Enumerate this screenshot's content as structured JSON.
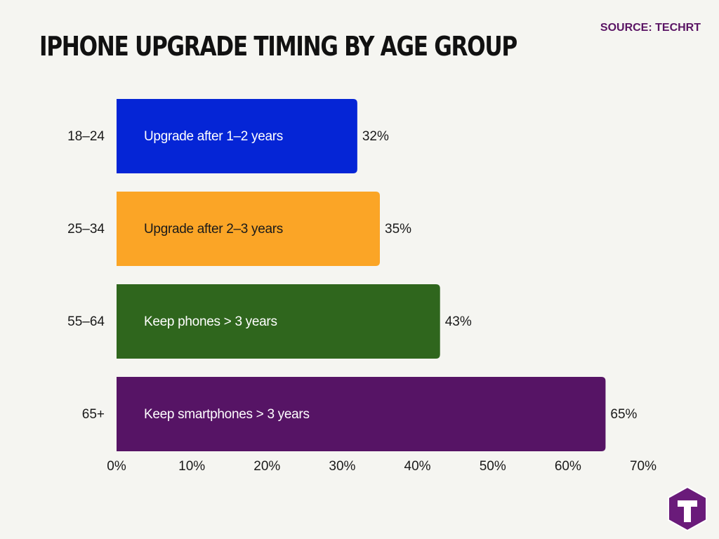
{
  "title": "IPHONE UPGRADE TIMING BY AGE GROUP",
  "source": "SOURCE: TECHRT",
  "logo": {
    "icon": "techrt-t-logo-icon",
    "color": "#6a1b7a"
  },
  "chart_data": {
    "type": "bar",
    "orientation": "horizontal",
    "categories": [
      "18–24",
      "25–34",
      "55–64",
      "65+"
    ],
    "values": [
      32,
      35,
      43,
      65
    ],
    "bar_labels": [
      "Upgrade after 1–2 years",
      "Upgrade after 2–3 years",
      "Keep phones > 3 years",
      "Keep smartphones > 3 years"
    ],
    "value_labels": [
      "32%",
      "35%",
      "43%",
      "65%"
    ],
    "colors": [
      "#0525d6",
      "#fba526",
      "#2f661d",
      "#561465"
    ],
    "label_colors": [
      "#ffffff",
      "#1a1a1a",
      "#ffffff",
      "#ffffff"
    ],
    "xticks": [
      "0%",
      "10%",
      "20%",
      "30%",
      "40%",
      "50%",
      "60%",
      "70%"
    ],
    "xlim": [
      0,
      70
    ],
    "grid": false
  }
}
